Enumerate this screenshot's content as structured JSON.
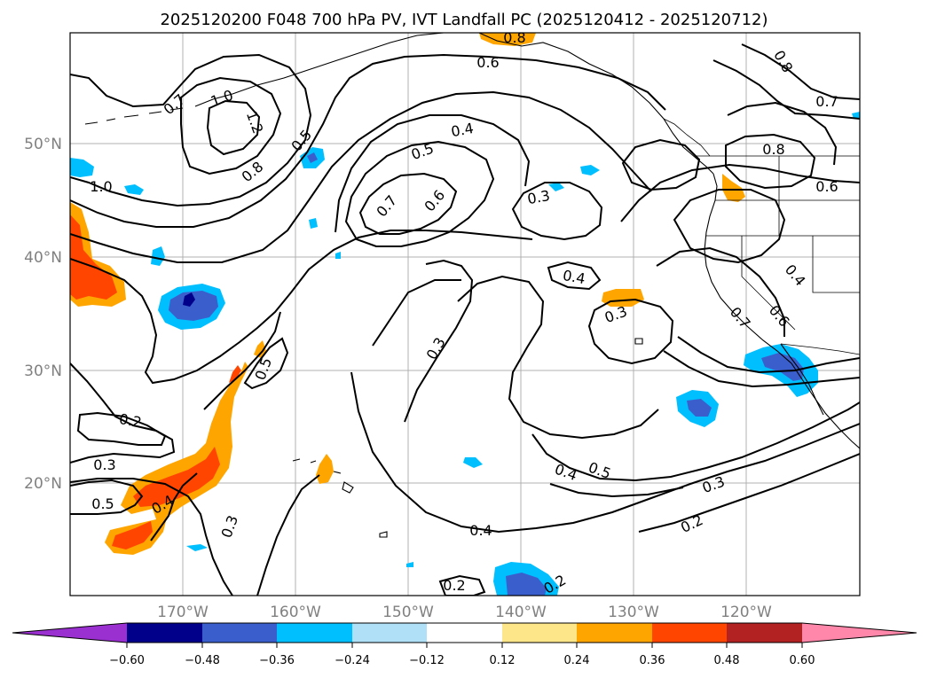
{
  "title": "2025120200 F048 700 hPa PV, IVT Landfall PC (2025120412 - 2025120712)",
  "lat_labels": [
    "50°N",
    "40°N",
    "30°N",
    "20°N"
  ],
  "lon_labels": [
    "170°W",
    "160°W",
    "150°W",
    "140°W",
    "130°W",
    "120°W"
  ],
  "contour_labels": [
    "0.7",
    "1.0",
    "1.2",
    "0.8",
    "0.5",
    "1.0",
    "0.6",
    "0.8",
    "0.8",
    "0.7",
    "0.8",
    "0.6",
    "0.5",
    "0.4",
    "0.7",
    "0.6",
    "0.3",
    "0.4",
    "0.3",
    "0.4",
    "0.6",
    "0.7",
    "0.5",
    "0.3",
    "0.2",
    "0.3",
    "0.5",
    "0.4",
    "0.3",
    "0.4",
    "0.5",
    "0.3",
    "0.2",
    "0.4",
    "0.2",
    "0.2"
  ],
  "colorbar": {
    "tick_labels": [
      "−0.60",
      "−0.48",
      "−0.36",
      "−0.24",
      "−0.12",
      "0.12",
      "0.24",
      "0.36",
      "0.48",
      "0.60"
    ],
    "colors": [
      "#9b30d0",
      "#00008b",
      "#3a5fcd",
      "#00bfff",
      "#b0e0f8",
      "#ffffff",
      "#fde68a",
      "#ffa500",
      "#ff4500",
      "#b22222",
      "#ff88aa"
    ]
  },
  "fill_colors": {
    "orange": "#ffa500",
    "red_orange": "#ff4500",
    "light_orange": "#fde68a",
    "cyan": "#00bfff",
    "royal": "#3a5fcd",
    "navy": "#00008b"
  }
}
